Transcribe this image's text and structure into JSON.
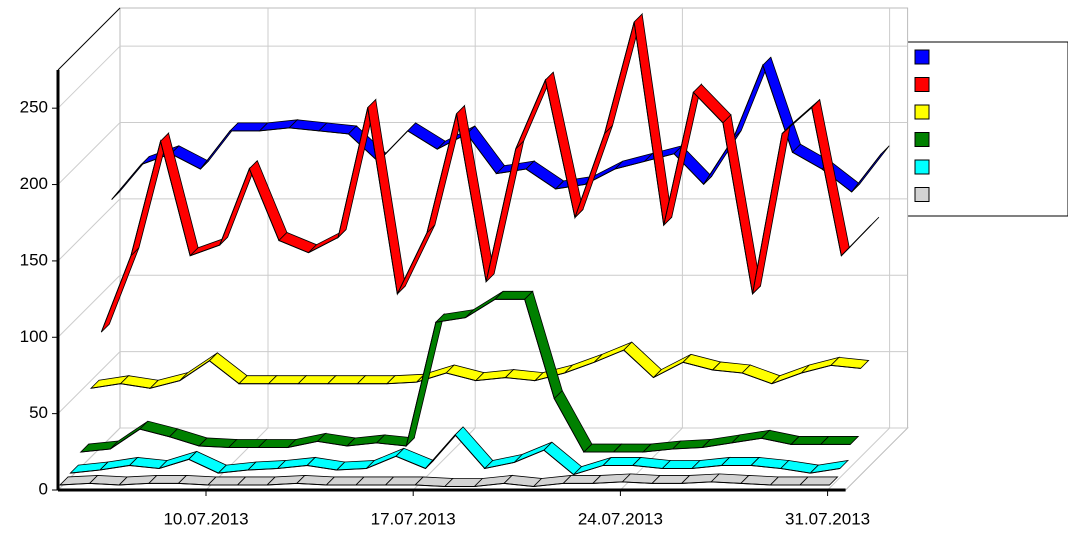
{
  "chart_data": {
    "type": "line3d",
    "categories": [
      null,
      null,
      null,
      null,
      null,
      "10.07.2013",
      null,
      null,
      null,
      null,
      null,
      null,
      "17.07.2013",
      null,
      null,
      null,
      null,
      null,
      null,
      "24.07.2013",
      null,
      null,
      null,
      null,
      null,
      null,
      "31.07.2013"
    ],
    "ylim": [
      0,
      275
    ],
    "yticks": [
      0,
      50,
      100,
      150,
      200,
      250
    ],
    "grid": true,
    "legend": "right",
    "series": [
      {
        "color": "#0000ff",
        "values": [
          155,
          178,
          185,
          175,
          200,
          200,
          202,
          200,
          198,
          180,
          200,
          188,
          198,
          172,
          175,
          162,
          165,
          175,
          180,
          185,
          165,
          195,
          243,
          186,
          175,
          160,
          185
        ]
      },
      {
        "color": "#ff0000",
        "values": [
          75,
          125,
          200,
          125,
          132,
          182,
          135,
          127,
          137,
          222,
          100,
          140,
          218,
          108,
          195,
          240,
          150,
          205,
          278,
          145,
          232,
          212,
          100,
          205,
          222,
          125,
          145
        ]
      },
      {
        "color": "#ffff00",
        "values": [
          45,
          48,
          45,
          50,
          63,
          48,
          48,
          48,
          48,
          48,
          48,
          49,
          55,
          50,
          52,
          50,
          55,
          62,
          70,
          52,
          62,
          57,
          55,
          48,
          55,
          60,
          58
        ]
      },
      {
        "color": "#008000",
        "values": [
          10,
          12,
          25,
          20,
          14,
          13,
          13,
          13,
          17,
          14,
          16,
          14,
          95,
          98,
          110,
          110,
          45,
          10,
          10,
          10,
          12,
          13,
          16,
          19,
          15,
          15,
          15
        ]
      },
      {
        "color": "#00ffff",
        "values": [
          3,
          5,
          8,
          6,
          12,
          3,
          5,
          6,
          8,
          5,
          6,
          14,
          6,
          28,
          6,
          10,
          18,
          2,
          8,
          8,
          6,
          6,
          8,
          8,
          6,
          3,
          6
        ]
      },
      {
        "color": "#d3d3d3",
        "values": [
          2,
          3,
          2,
          3,
          3,
          2,
          2,
          2,
          3,
          2,
          2,
          2,
          2,
          1,
          1,
          3,
          1,
          3,
          3,
          4,
          3,
          3,
          4,
          3,
          2,
          2,
          2
        ]
      }
    ]
  }
}
